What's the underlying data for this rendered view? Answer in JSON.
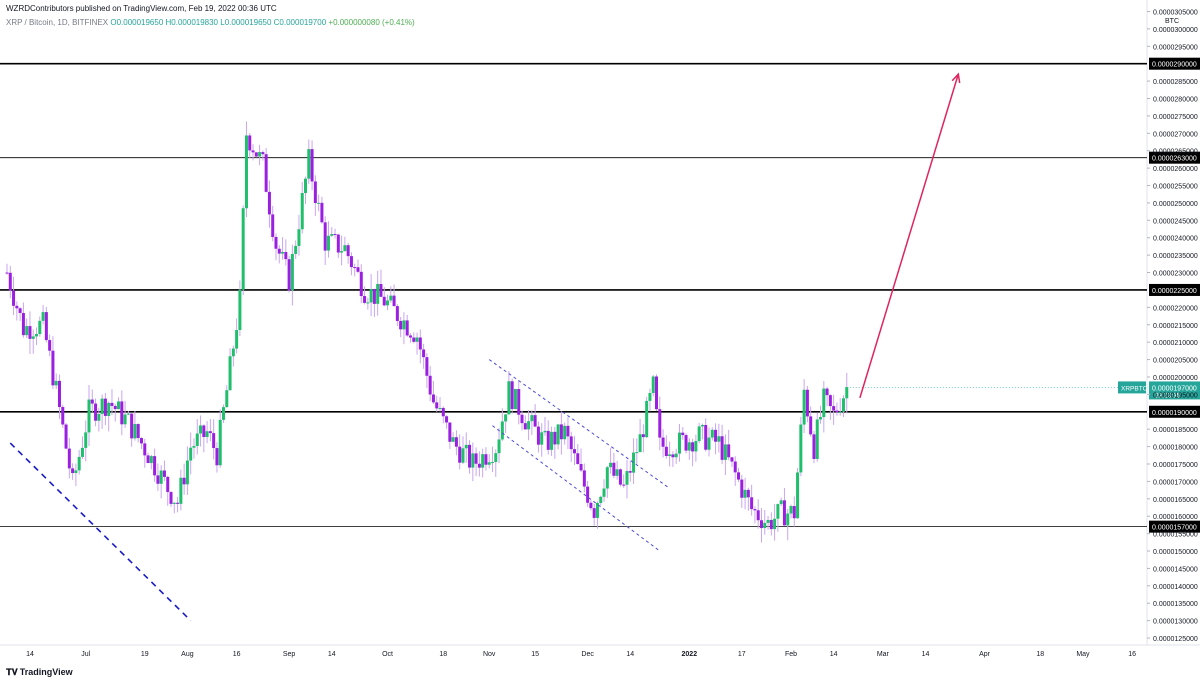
{
  "header": {
    "publish_line": "WZRDContributors published on TradingView.com, Feb 19, 2022 00:36 UTC",
    "symbol": "XRP / Bitcoin, 1D, BITFINEX",
    "o": "O0.000019650",
    "h": "H0.000019830",
    "l": "L0.000019650",
    "c": "C0.000019700",
    "change": "+0.000000080 (+0.41%)"
  },
  "footer": {
    "logo_text": "TradingView"
  },
  "colors": {
    "up": "#1fbf6b",
    "down": "#9b1fe0",
    "wick_up": "#c9a6f0",
    "wick_down": "#c9a6f0",
    "level_line": "#000000",
    "arrow": "#e0245e",
    "channel": "#4e4bd6",
    "trendline": "#1a1ac8",
    "price_label_bg": "#26a69a"
  },
  "chart_data": {
    "type": "candlestick",
    "symbol": "XRPBTC",
    "y_unit": "BTC",
    "ylim": [
      1.23e-05,
      3.06e-05
    ],
    "y_ticks": [
      "0.0000125000",
      "0.0000130000",
      "0.0000135000",
      "0.0000140000",
      "0.0000145000",
      "0.0000150000",
      "0.0000155000",
      "0.0000160000",
      "0.0000165000",
      "0.0000170000",
      "0.0000175000",
      "0.0000180000",
      "0.0000185000",
      "0.0000195000",
      "0.0000200000",
      "0.0000205000",
      "0.0000210000",
      "0.0000215000",
      "0.0000220000",
      "0.0000230000",
      "0.0000235000",
      "0.0000240000",
      "0.0000245000",
      "0.0000250000",
      "0.0000255000",
      "0.0000260000",
      "0.0000265000",
      "0.0000270000",
      "0.0000275000",
      "0.0000280000",
      "0.0000285000",
      "0.0000295000",
      "0.0000300000",
      "0.0000305000"
    ],
    "x_ticks": [
      {
        "label": "14",
        "date": "2021-06-14"
      },
      {
        "label": "Jul",
        "date": "2021-07-01"
      },
      {
        "label": "19",
        "date": "2021-07-19"
      },
      {
        "label": "Aug",
        "date": "2021-08-01"
      },
      {
        "label": "16",
        "date": "2021-08-16"
      },
      {
        "label": "Sep",
        "date": "2021-09-01"
      },
      {
        "label": "14",
        "date": "2021-09-14"
      },
      {
        "label": "Oct",
        "date": "2021-10-01"
      },
      {
        "label": "18",
        "date": "2021-10-18"
      },
      {
        "label": "Nov",
        "date": "2021-11-01"
      },
      {
        "label": "15",
        "date": "2021-11-15"
      },
      {
        "label": "Dec",
        "date": "2021-12-01"
      },
      {
        "label": "14",
        "date": "2021-12-14"
      },
      {
        "label": "2022",
        "date": "2022-01-01"
      },
      {
        "label": "17",
        "date": "2022-01-17"
      },
      {
        "label": "Feb",
        "date": "2022-02-01"
      },
      {
        "label": "14",
        "date": "2022-02-14"
      },
      {
        "label": "Mar",
        "date": "2022-03-01"
      },
      {
        "label": "14",
        "date": "2022-03-14"
      },
      {
        "label": "Apr",
        "date": "2022-04-01"
      },
      {
        "label": "18",
        "date": "2022-04-18"
      },
      {
        "label": "May",
        "date": "2022-05-01"
      },
      {
        "label": "16",
        "date": "2022-05-16"
      }
    ],
    "horizontal_levels": [
      {
        "price": 2.9e-05,
        "label": "0.0000290000"
      },
      {
        "price": 2.63e-05,
        "label": "0.0000263000"
      },
      {
        "price": 2.25e-05,
        "label": "0.0000225000"
      },
      {
        "price": 1.9e-05,
        "label": "0.0000190000"
      },
      {
        "price": 1.57e-05,
        "label": "0.0000157000"
      }
    ],
    "last_price": {
      "symbol": "XRPBTC",
      "price": 1.97e-05,
      "label": "0.0000197000",
      "countdown": "23:23:35"
    },
    "annotations": {
      "arrow": {
        "from": {
          "date": "2022-02-22",
          "price": 1.94e-05
        },
        "to": {
          "date": "2022-03-24",
          "price": 2.87e-05
        }
      },
      "channel_upper": {
        "from": {
          "date": "2021-11-01",
          "price": 2.05e-05
        },
        "to": {
          "date": "2021-12-26",
          "price": 1.68e-05
        }
      },
      "channel_lower": {
        "from": {
          "date": "2021-11-02",
          "price": 1.86e-05
        },
        "to": {
          "date": "2021-12-23",
          "price": 1.5e-05
        }
      },
      "trendline": {
        "from": {
          "date": "2021-06-08",
          "price": 1.81e-05
        },
        "to": {
          "date": "2021-08-02",
          "price": 1.3e-05
        }
      }
    },
    "close_path": [
      [
        "2021-06-07",
        2.3e-05
      ],
      [
        "2021-06-12",
        2.14e-05
      ],
      [
        "2021-06-18",
        2.15e-05
      ],
      [
        "2021-06-22",
        1.96e-05
      ],
      [
        "2021-06-27",
        1.69e-05
      ],
      [
        "2021-07-02",
        1.9e-05
      ],
      [
        "2021-07-08",
        1.93e-05
      ],
      [
        "2021-07-14",
        1.87e-05
      ],
      [
        "2021-07-20",
        1.78e-05
      ],
      [
        "2021-07-26",
        1.68e-05
      ],
      [
        "2021-07-29",
        1.64e-05
      ],
      [
        "2021-08-02",
        1.8e-05
      ],
      [
        "2021-08-07",
        1.84e-05
      ],
      [
        "2021-08-10",
        1.78e-05
      ],
      [
        "2021-08-13",
        1.96e-05
      ],
      [
        "2021-08-17",
        2.22e-05
      ],
      [
        "2021-08-19",
        2.7e-05
      ],
      [
        "2021-08-24",
        2.61e-05
      ],
      [
        "2021-08-28",
        2.38e-05
      ],
      [
        "2021-09-01",
        2.28e-05
      ],
      [
        "2021-09-07",
        2.62e-05
      ],
      [
        "2021-09-12",
        2.39e-05
      ],
      [
        "2021-09-18",
        2.37e-05
      ],
      [
        "2021-09-24",
        2.25e-05
      ],
      [
        "2021-09-30",
        2.22e-05
      ],
      [
        "2021-10-05",
        2.17e-05
      ],
      [
        "2021-10-10",
        2.12e-05
      ],
      [
        "2021-10-15",
        1.93e-05
      ],
      [
        "2021-10-21",
        1.81e-05
      ],
      [
        "2021-10-27",
        1.75e-05
      ],
      [
        "2021-11-03",
        1.8e-05
      ],
      [
        "2021-11-07",
        1.96e-05
      ],
      [
        "2021-11-12",
        1.88e-05
      ],
      [
        "2021-11-18",
        1.81e-05
      ],
      [
        "2021-11-24",
        1.84e-05
      ],
      [
        "2021-11-29",
        1.71e-05
      ],
      [
        "2021-12-03",
        1.62e-05
      ],
      [
        "2021-12-07",
        1.74e-05
      ],
      [
        "2021-12-12",
        1.68e-05
      ],
      [
        "2021-12-17",
        1.82e-05
      ],
      [
        "2021-12-21",
        1.97e-05
      ],
      [
        "2021-12-23",
        1.8e-05
      ],
      [
        "2021-12-29",
        1.81e-05
      ],
      [
        "2022-01-04",
        1.83e-05
      ],
      [
        "2022-01-10",
        1.81e-05
      ],
      [
        "2022-01-15",
        1.72e-05
      ],
      [
        "2022-01-20",
        1.62e-05
      ],
      [
        "2022-01-25",
        1.58e-05
      ],
      [
        "2022-01-29",
        1.61e-05
      ],
      [
        "2022-02-02",
        1.61e-05
      ],
      [
        "2022-02-05",
        1.96e-05
      ],
      [
        "2022-02-08",
        1.8e-05
      ],
      [
        "2022-02-11",
        1.93e-05
      ],
      [
        "2022-02-14",
        1.89e-05
      ],
      [
        "2022-02-18",
        1.97e-05
      ]
    ]
  }
}
